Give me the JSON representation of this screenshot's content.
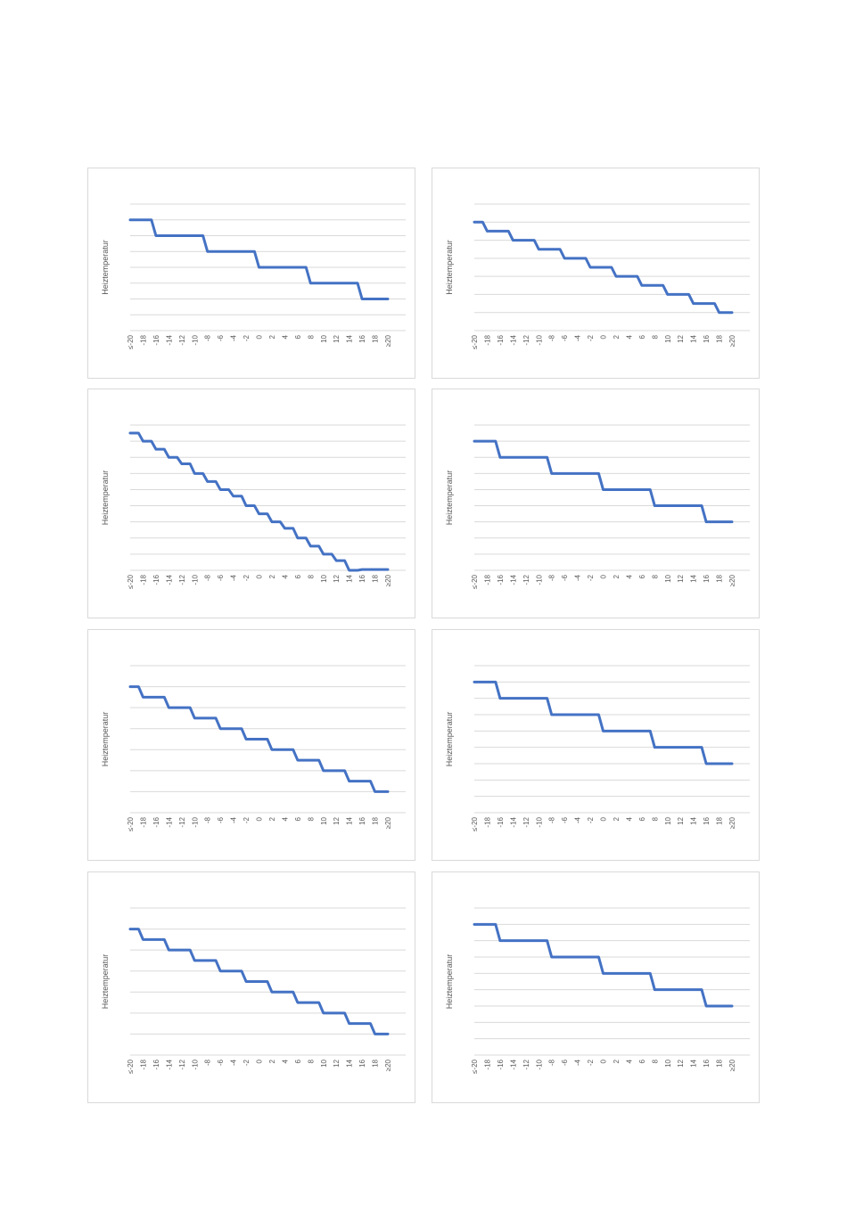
{
  "theme": {
    "line_color": "#4472C4",
    "grid_color": "#D9D9D9",
    "text_color": "#595959"
  },
  "chart_data": [
    {
      "type": "line",
      "ylabel": "Heiztemperatur",
      "categories": [
        "≤-20",
        "-18",
        "-16",
        "-14",
        "-12",
        "-10",
        "-8",
        "-6",
        "-4",
        "-2",
        "0",
        "2",
        "4",
        "6",
        "8",
        "10",
        "12",
        "14",
        "16",
        "18",
        "≥20"
      ],
      "ylim": [
        0,
        8
      ],
      "grid": true,
      "legend": "none",
      "series": [
        {
          "values": [
            7,
            7,
            6,
            6,
            6,
            6,
            5,
            5,
            5,
            5,
            4,
            4,
            4,
            4,
            3,
            3,
            3,
            3,
            2,
            2,
            2
          ]
        }
      ]
    },
    {
      "type": "line",
      "ylabel": "Heiztemperatur",
      "categories": [
        "≤-20",
        "-18",
        "-16",
        "-14",
        "-12",
        "-10",
        "-8",
        "-6",
        "-4",
        "-2",
        "0",
        "2",
        "4",
        "6",
        "8",
        "10",
        "12",
        "14",
        "16",
        "18",
        "≥20"
      ],
      "ylim": [
        0,
        7
      ],
      "grid": true,
      "legend": "none",
      "series": [
        {
          "values": [
            6,
            5.5,
            5.5,
            5,
            5,
            4.5,
            4.5,
            4,
            4,
            3.5,
            3.5,
            3,
            3,
            2.5,
            2.5,
            2,
            2,
            1.5,
            1.5,
            1,
            1
          ]
        }
      ]
    },
    {
      "type": "line",
      "ylabel": "Heiztemperatur",
      "categories": [
        "≤-20",
        "-18",
        "-16",
        "-14",
        "-12",
        "-10",
        "-8",
        "-6",
        "-4",
        "-2",
        "0",
        "2",
        "4",
        "6",
        "8",
        "10",
        "12",
        "14",
        "16",
        "18",
        "≥20"
      ],
      "ylim": [
        0,
        9
      ],
      "grid": true,
      "legend": "none",
      "series": [
        {
          "values": [
            8.5,
            8,
            7.5,
            7,
            6.6,
            6,
            5.5,
            5,
            4.6,
            4,
            3.5,
            3,
            2.6,
            2,
            1.5,
            1,
            0.6,
            0,
            0.05,
            0.05,
            0.05
          ]
        }
      ]
    },
    {
      "type": "line",
      "ylabel": "Heiztemperatur",
      "categories": [
        "≤-20",
        "-18",
        "-16",
        "-14",
        "-12",
        "-10",
        "-8",
        "-6",
        "-4",
        "-2",
        "0",
        "2",
        "4",
        "6",
        "8",
        "10",
        "12",
        "14",
        "16",
        "18",
        "≥20"
      ],
      "ylim": [
        0,
        9
      ],
      "grid": true,
      "legend": "none",
      "series": [
        {
          "values": [
            8,
            8,
            7,
            7,
            7,
            7,
            6,
            6,
            6,
            6,
            5,
            5,
            5,
            5,
            4,
            4,
            4,
            4,
            3,
            3,
            3
          ]
        }
      ]
    },
    {
      "type": "line",
      "ylabel": "Heiztemperatur",
      "categories": [
        "≤-20",
        "-18",
        "-16",
        "-14",
        "-12",
        "-10",
        "-8",
        "-6",
        "-4",
        "-2",
        "0",
        "2",
        "4",
        "6",
        "8",
        "10",
        "12",
        "14",
        "16",
        "18",
        "≥20"
      ],
      "ylim": [
        0,
        7
      ],
      "grid": true,
      "legend": "none",
      "series": [
        {
          "values": [
            6,
            5.5,
            5.5,
            5,
            5,
            4.5,
            4.5,
            4,
            4,
            3.5,
            3.5,
            3,
            3,
            2.5,
            2.5,
            2,
            2,
            1.5,
            1.5,
            1,
            1
          ]
        }
      ]
    },
    {
      "type": "line",
      "ylabel": "Heiztemperatur",
      "categories": [
        "≤-20",
        "-18",
        "-16",
        "-14",
        "-12",
        "-10",
        "-8",
        "-6",
        "-4",
        "-2",
        "0",
        "2",
        "4",
        "6",
        "8",
        "10",
        "12",
        "14",
        "16",
        "18",
        "≥20"
      ],
      "ylim": [
        0,
        9
      ],
      "grid": true,
      "legend": "none",
      "series": [
        {
          "values": [
            8,
            8,
            7,
            7,
            7,
            7,
            6,
            6,
            6,
            6,
            5,
            5,
            5,
            5,
            4,
            4,
            4,
            4,
            3,
            3,
            3
          ]
        }
      ]
    },
    {
      "type": "line",
      "ylabel": "Heiztemperatur",
      "categories": [
        "≤-20",
        "-18",
        "-16",
        "-14",
        "-12",
        "-10",
        "-8",
        "-6",
        "-4",
        "-2",
        "0",
        "2",
        "4",
        "6",
        "8",
        "10",
        "12",
        "14",
        "16",
        "18",
        "≥20"
      ],
      "ylim": [
        0,
        7
      ],
      "grid": true,
      "legend": "none",
      "series": [
        {
          "values": [
            6,
            5.5,
            5.5,
            5,
            5,
            4.5,
            4.5,
            4,
            4,
            3.5,
            3.5,
            3,
            3,
            2.5,
            2.5,
            2,
            2,
            1.5,
            1.5,
            1,
            1
          ]
        }
      ]
    },
    {
      "type": "line",
      "ylabel": "Heiztemperatur",
      "categories": [
        "≤-20",
        "-18",
        "-16",
        "-14",
        "-12",
        "-10",
        "-8",
        "-6",
        "-4",
        "-2",
        "0",
        "2",
        "4",
        "6",
        "8",
        "10",
        "12",
        "14",
        "16",
        "18",
        "≥20"
      ],
      "ylim": [
        0,
        9
      ],
      "grid": true,
      "legend": "none",
      "series": [
        {
          "values": [
            8,
            8,
            7,
            7,
            7,
            7,
            6,
            6,
            6,
            6,
            5,
            5,
            5,
            5,
            4,
            4,
            4,
            4,
            3,
            3,
            3
          ]
        }
      ]
    }
  ]
}
